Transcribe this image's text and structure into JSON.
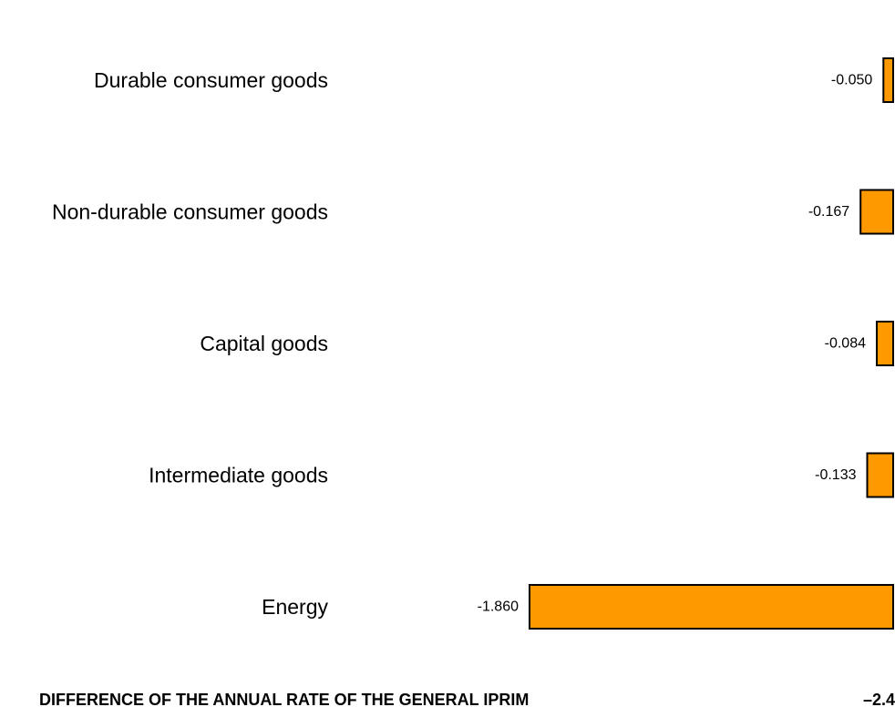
{
  "chart_data": {
    "type": "bar",
    "orientation": "horizontal",
    "categories": [
      "Durable consumer goods",
      "Non-durable consumer goods",
      "Capital goods",
      "Intermediate goods",
      "Energy"
    ],
    "values": [
      -0.05,
      -0.167,
      -0.084,
      -0.133,
      -1.86
    ],
    "value_labels": [
      "-0.050",
      "-0.167",
      "-0.084",
      "-0.133",
      "-1.860"
    ],
    "bar_color": "#FF9900",
    "bar_edge_color": "#000000",
    "xlim": [
      -1.86,
      0
    ],
    "grid": false,
    "legend": "none"
  },
  "footer": {
    "label": "DIFFERENCE OF THE ANNUAL RATE OF THE GENERAL IPRIM",
    "value": "–2.4"
  }
}
